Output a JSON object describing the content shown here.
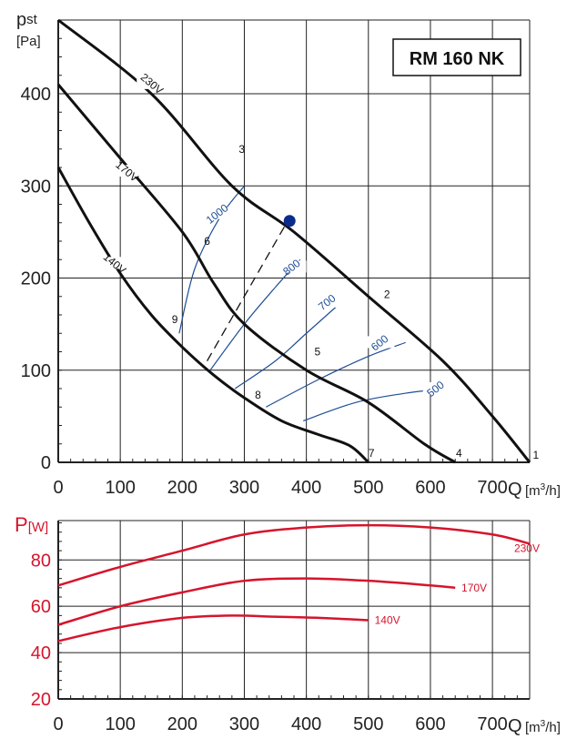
{
  "chart_data": [
    {
      "type": "line",
      "title": "RM 160 NK",
      "ylabel_main": "p",
      "ylabel_sub": "st",
      "ylabel_unit": "[Pa]",
      "xlabel": "Q",
      "xlabel_unit": "[m",
      "xlabel_unit_sup": "3",
      "xlabel_unit_end": "/h]",
      "xlim": [
        0,
        760
      ],
      "ylim": [
        0,
        480
      ],
      "x_ticks": [
        0,
        100,
        200,
        300,
        400,
        500,
        600,
        700
      ],
      "y_ticks": [
        0,
        100,
        200,
        300,
        400
      ],
      "grid": true,
      "series": [
        {
          "name": "230V",
          "x": [
            0,
            150,
            280,
            380,
            500,
            620,
            700,
            760
          ],
          "y": [
            480,
            400,
            300,
            250,
            180,
            110,
            50,
            0
          ]
        },
        {
          "name": "170V",
          "x": [
            0,
            100,
            200,
            250,
            300,
            400,
            500,
            590,
            640
          ],
          "y": [
            410,
            330,
            250,
            195,
            150,
            100,
            65,
            20,
            0
          ]
        },
        {
          "name": "140V",
          "x": [
            0,
            50,
            100,
            150,
            200,
            250,
            300,
            360,
            420,
            470,
            500
          ],
          "y": [
            320,
            260,
            205,
            160,
            125,
            95,
            70,
            45,
            30,
            18,
            0
          ]
        }
      ],
      "efficiency_curves": [
        {
          "label": "1000",
          "x": [
            195,
            220,
            260,
            300
          ],
          "y": [
            140,
            210,
            265,
            300
          ]
        },
        {
          "label": "800",
          "x": [
            245,
            300,
            350,
            390
          ],
          "y": [
            100,
            150,
            190,
            220
          ]
        },
        {
          "label": "700",
          "x": [
            285,
            350,
            400,
            450
          ],
          "y": [
            80,
            110,
            140,
            170
          ]
        },
        {
          "label": "600",
          "x": [
            335,
            420,
            500,
            560
          ],
          "y": [
            60,
            90,
            115,
            130
          ]
        },
        {
          "label": "500",
          "x": [
            395,
            480,
            560,
            620
          ],
          "y": [
            45,
            65,
            75,
            80
          ]
        }
      ],
      "dashed_line": {
        "x": [
          240,
          370
        ],
        "y": [
          110,
          262
        ]
      },
      "operating_point": {
        "x": 373,
        "y": 262
      },
      "point_labels": [
        {
          "label": "1",
          "x": 770,
          "y": 8
        },
        {
          "label": "2",
          "x": 530,
          "y": 182
        },
        {
          "label": "3",
          "x": 296,
          "y": 340
        },
        {
          "label": "4",
          "x": 646,
          "y": 10
        },
        {
          "label": "5",
          "x": 418,
          "y": 120
        },
        {
          "label": "6",
          "x": 240,
          "y": 240
        },
        {
          "label": "7",
          "x": 505,
          "y": 10
        },
        {
          "label": "8",
          "x": 322,
          "y": 73
        },
        {
          "label": "9",
          "x": 188,
          "y": 155
        }
      ],
      "curve_labels": [
        {
          "label": "230V",
          "x": 150,
          "y": 410
        },
        {
          "label": "170V",
          "x": 110,
          "y": 315
        },
        {
          "label": "140V",
          "x": 90,
          "y": 215
        }
      ],
      "efficiency_label_positions": [
        {
          "label": "1000",
          "x": 258,
          "y": 268
        },
        {
          "label": "800",
          "x": 378,
          "y": 210
        },
        {
          "label": "700",
          "x": 435,
          "y": 172
        },
        {
          "label": "600",
          "x": 520,
          "y": 128
        },
        {
          "label": "500",
          "x": 610,
          "y": 78
        }
      ]
    },
    {
      "type": "line",
      "ylabel": "P",
      "ylabel_unit": "[W]",
      "xlabel": "Q",
      "xlabel_unit": "[m",
      "xlabel_unit_sup": "3",
      "xlabel_unit_end": "/h]",
      "xlim": [
        0,
        760
      ],
      "ylim": [
        20,
        97
      ],
      "x_ticks": [
        0,
        100,
        200,
        300,
        400,
        500,
        600,
        700
      ],
      "y_ticks": [
        20,
        40,
        60,
        80
      ],
      "grid": true,
      "series": [
        {
          "name": "230V",
          "x": [
            0,
            100,
            200,
            300,
            400,
            500,
            600,
            700,
            760
          ],
          "y": [
            69,
            77,
            84,
            91,
            94,
            95,
            94,
            91,
            87
          ]
        },
        {
          "name": "170V",
          "x": [
            0,
            100,
            200,
            300,
            400,
            500,
            600,
            640
          ],
          "y": [
            52,
            60,
            66,
            71,
            72,
            71,
            69,
            68
          ]
        },
        {
          "name": "140V",
          "x": [
            0,
            100,
            200,
            280,
            350,
            420,
            500
          ],
          "y": [
            45,
            51,
            55,
            56,
            55.5,
            55,
            54
          ]
        }
      ],
      "curve_label_positions": [
        {
          "label": "230V",
          "x": 735,
          "y": 85
        },
        {
          "label": "170V",
          "x": 650,
          "y": 68
        },
        {
          "label": "140V",
          "x": 510,
          "y": 54
        }
      ]
    }
  ]
}
